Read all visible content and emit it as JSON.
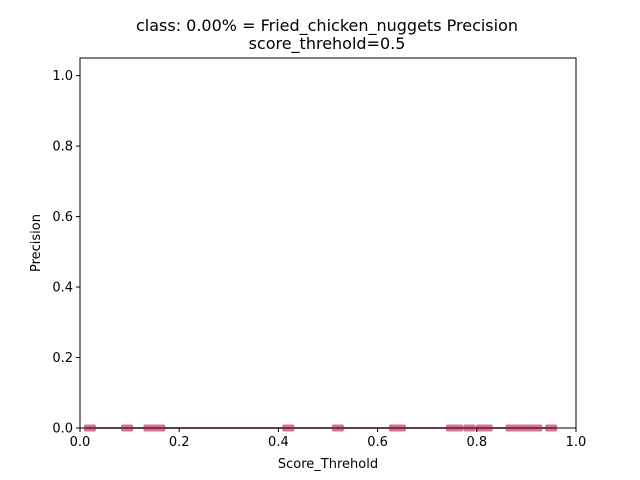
{
  "chart_data": {
    "type": "scatter",
    "title_line1": "class: 0.00% = Fried_chicken_nuggets Precision",
    "title_line2": "score_threhold=0.5",
    "xlabel": "Score_Threhold",
    "ylabel": "Precision",
    "xlim": [
      0.0,
      1.0
    ],
    "ylim": [
      0.0,
      1.05
    ],
    "xticks": [
      "0.0",
      "0.2",
      "0.4",
      "0.6",
      "0.8",
      "1.0"
    ],
    "yticks": [
      "0.0",
      "0.2",
      "0.4",
      "0.6",
      "0.8",
      "1.0"
    ],
    "grid": false,
    "line_color": "#8b0000",
    "marker_color": "#db7093",
    "series": [
      {
        "x": [
          0.015,
          0.025,
          0.09,
          0.1,
          0.135,
          0.145,
          0.155,
          0.165,
          0.415,
          0.425,
          0.515,
          0.525,
          0.63,
          0.64,
          0.65,
          0.745,
          0.755,
          0.765,
          0.78,
          0.79,
          0.805,
          0.815,
          0.825,
          0.865,
          0.875,
          0.885,
          0.895,
          0.905,
          0.915,
          0.925,
          0.945,
          0.955
        ],
        "y": [
          0,
          0,
          0,
          0,
          0,
          0,
          0,
          0,
          0,
          0,
          0,
          0,
          0,
          0,
          0,
          0,
          0,
          0,
          0,
          0,
          0,
          0,
          0,
          0,
          0,
          0,
          0,
          0,
          0,
          0,
          0,
          0
        ]
      }
    ]
  }
}
